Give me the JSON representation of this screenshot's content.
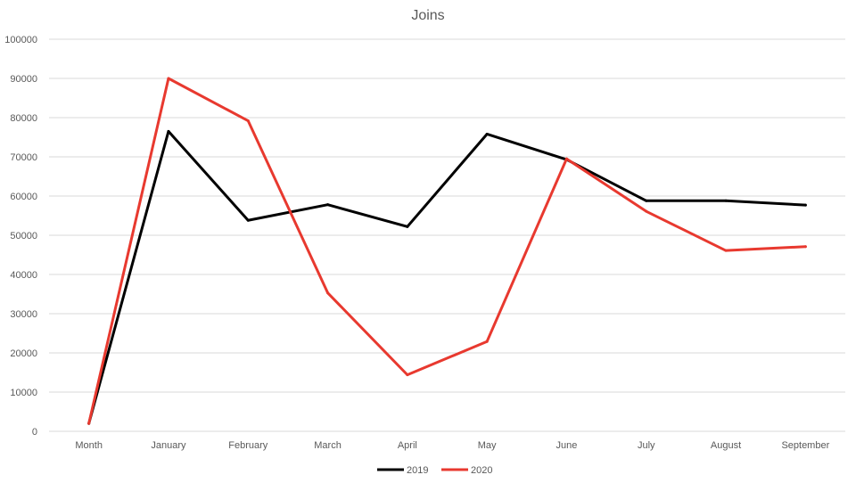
{
  "chart_data": {
    "type": "line",
    "title": "Joins",
    "xlabel": "",
    "ylabel": "",
    "categories": [
      "Month",
      "January",
      "February",
      "March",
      "April",
      "May",
      "June",
      "July",
      "August",
      "September"
    ],
    "y_ticks": [
      "0",
      "10000",
      "20000",
      "30000",
      "40000",
      "50000",
      "60000",
      "70000",
      "80000",
      "90000",
      "100000"
    ],
    "ylim": [
      0,
      100000
    ],
    "grid": true,
    "legend_position": "bottom",
    "series": [
      {
        "name": "2019",
        "color": "#000000",
        "values": [
          2000,
          76500,
          53800,
          57800,
          52200,
          75800,
          69300,
          58800,
          58800,
          57700
        ]
      },
      {
        "name": "2020",
        "color": "#e8392f",
        "values": [
          2000,
          90000,
          79200,
          35300,
          14400,
          22900,
          69500,
          56100,
          46100,
          47100
        ]
      }
    ]
  }
}
